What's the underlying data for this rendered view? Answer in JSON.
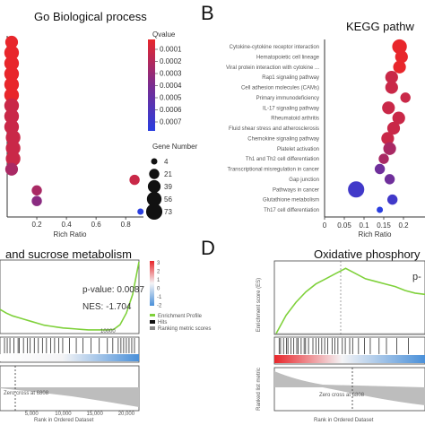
{
  "panel_letters": {
    "B": "B",
    "D": "D"
  },
  "chart_data": [
    {
      "type": "scatter",
      "panel": "A",
      "title": "Go Biological process",
      "xlabel": "Rich Ratio",
      "ylabel": "",
      "x_ticks": [
        "0.2",
        "0.4",
        "0.6",
        "0.8"
      ],
      "xlim": [
        0.0,
        0.92
      ],
      "categories": [
        "",
        "",
        "",
        "",
        "",
        "",
        "",
        "",
        "",
        "",
        "",
        "",
        "",
        "",
        "",
        "",
        ""
      ],
      "points": [
        {
          "x": 0.03,
          "y": 0,
          "size": 39,
          "qvalue": 0.0
        },
        {
          "x": 0.03,
          "y": 1,
          "size": 56,
          "qvalue": 0.0
        },
        {
          "x": 0.03,
          "y": 2,
          "size": 56,
          "qvalue": 0.0
        },
        {
          "x": 0.03,
          "y": 3,
          "size": 56,
          "qvalue": 0.0
        },
        {
          "x": 0.03,
          "y": 4,
          "size": 56,
          "qvalue": 0.0
        },
        {
          "x": 0.03,
          "y": 5,
          "size": 56,
          "qvalue": 0.0
        },
        {
          "x": 0.03,
          "y": 6,
          "size": 56,
          "qvalue": 0.0001
        },
        {
          "x": 0.03,
          "y": 7,
          "size": 56,
          "qvalue": 0.0001
        },
        {
          "x": 0.03,
          "y": 8,
          "size": 56,
          "qvalue": 0.0001
        },
        {
          "x": 0.04,
          "y": 9,
          "size": 56,
          "qvalue": 0.0001
        },
        {
          "x": 0.04,
          "y": 10,
          "size": 56,
          "qvalue": 0.0001
        },
        {
          "x": 0.04,
          "y": 11,
          "size": 56,
          "qvalue": 0.0001
        },
        {
          "x": 0.03,
          "y": 12,
          "size": 39,
          "qvalue": 0.0002
        },
        {
          "x": 0.86,
          "y": 13,
          "size": 21,
          "qvalue": 0.0001
        },
        {
          "x": 0.2,
          "y": 14,
          "size": 21,
          "qvalue": 0.0002
        },
        {
          "x": 0.2,
          "y": 15,
          "size": 21,
          "qvalue": 0.0003
        },
        {
          "x": 0.9,
          "y": 16,
          "size": 4,
          "qvalue": 0.0007
        }
      ],
      "colorbar": {
        "title": "Qvalue",
        "ticks": [
          "0.0001",
          "0.0002",
          "0.0003",
          "0.0004",
          "0.0005",
          "0.0006",
          "0.0007"
        ],
        "colors": [
          "#e8262b",
          "#7a2c8f",
          "#2a3ee0"
        ]
      },
      "size_legend": {
        "title": "Gene Number",
        "values": [
          "4",
          "21",
          "39",
          "56",
          "73"
        ]
      },
      "colors": {
        "high": "#e8262b",
        "mid": "#7a2c8f",
        "low": "#2a3ee0"
      }
    },
    {
      "type": "scatter",
      "panel": "B",
      "title": "KEGG pathw",
      "xlabel": "Rich Ratio",
      "ylabel": "",
      "x_ticks": [
        "0",
        "0.05",
        "0.1",
        "0.15",
        "0.2"
      ],
      "xlim": [
        0,
        0.2
      ],
      "categories": [
        "Cytokine-cytokine receptor interaction",
        "Hematopoietic cell lineage",
        "Viral protein interaction with cytokine ...",
        "Rap1 signaling pathway",
        "Cell adhesion molecules (CAMs)",
        "Primary immunodeficiency",
        "IL-17 signaling pathway",
        "Rheumatoid arthritis",
        "Fluid shear stress and atherosclerosis",
        "Chemokine signaling pathway",
        "Platelet activation",
        "Th1 and Th2 cell differentiation",
        "Transcriptional misregulation in cancer",
        "Gap junction",
        "Pathways in cancer",
        "Glutathione metabolism",
        "Th17 cell differentiation"
      ],
      "points": [
        {
          "x": 0.19,
          "y": 0,
          "size": 56,
          "qvalue": 0.0
        },
        {
          "x": 0.195,
          "y": 1,
          "size": 39,
          "qvalue": 0.0
        },
        {
          "x": 0.19,
          "y": 2,
          "size": 39,
          "qvalue": 0.0
        },
        {
          "x": 0.17,
          "y": 3,
          "size": 39,
          "qvalue": 0.0001
        },
        {
          "x": 0.17,
          "y": 4,
          "size": 39,
          "qvalue": 0.0001
        },
        {
          "x": 0.205,
          "y": 5,
          "size": 21,
          "qvalue": 0.0001
        },
        {
          "x": 0.162,
          "y": 6,
          "size": 39,
          "qvalue": 0.0001
        },
        {
          "x": 0.188,
          "y": 7,
          "size": 39,
          "qvalue": 0.0001
        },
        {
          "x": 0.175,
          "y": 8,
          "size": 39,
          "qvalue": 0.0001
        },
        {
          "x": 0.16,
          "y": 9,
          "size": 39,
          "qvalue": 0.0001
        },
        {
          "x": 0.165,
          "y": 10,
          "size": 39,
          "qvalue": 0.0002
        },
        {
          "x": 0.15,
          "y": 11,
          "size": 21,
          "qvalue": 0.0002
        },
        {
          "x": 0.14,
          "y": 12,
          "size": 21,
          "qvalue": 0.0004
        },
        {
          "x": 0.165,
          "y": 13,
          "size": 21,
          "qvalue": 0.0004
        },
        {
          "x": 0.08,
          "y": 14,
          "size": 73,
          "qvalue": 0.0006
        },
        {
          "x": 0.172,
          "y": 15,
          "size": 21,
          "qvalue": 0.0006
        },
        {
          "x": 0.14,
          "y": 16,
          "size": 4,
          "qvalue": 0.0007
        }
      ],
      "colors": {
        "high": "#e8262b",
        "mid": "#7a2c8f",
        "low": "#2a3ee0"
      }
    },
    {
      "type": "line",
      "panel": "C",
      "title": "and sucrose metabolism",
      "xlabel": "Rank in Ordered Dataset",
      "ylabel": "",
      "annotations": [
        "p-value: 0.0087",
        "NES: -1.704",
        "10000"
      ],
      "x_ticks": [
        "5,000",
        "10,000",
        "15,000",
        "20,000"
      ],
      "zero_label": "Zero cross at 6808",
      "legend": [
        "Enrichment Profile",
        "Hits",
        "Ranking metric scores"
      ],
      "heat_scale_ticks": [
        "3",
        "2",
        "1",
        "0",
        "-1",
        "-2"
      ],
      "x": [
        0,
        1000,
        2000,
        3000,
        4000,
        5000,
        6000,
        7000,
        8000,
        9000,
        10000,
        11000,
        12000,
        13000,
        14000,
        15000,
        16000,
        17000,
        18000,
        19000,
        20000,
        21000,
        22000
      ],
      "y": [
        -0.22,
        -0.3,
        -0.36,
        -0.4,
        -0.44,
        -0.48,
        -0.52,
        -0.56,
        -0.58,
        -0.6,
        -0.62,
        -0.63,
        -0.64,
        -0.65,
        -0.66,
        -0.66,
        -0.66,
        -0.66,
        -0.65,
        -0.55,
        -0.3,
        0.1,
        0.8
      ],
      "hits_rel": [
        0.02,
        0.04,
        0.06,
        0.09,
        0.12,
        0.13,
        0.16,
        0.19,
        0.21,
        0.24,
        0.27,
        0.3,
        0.33,
        0.36,
        0.39,
        0.42,
        0.45,
        0.5,
        0.55,
        0.6,
        0.66,
        0.72,
        0.78,
        0.82,
        0.86,
        0.88,
        0.9,
        0.92,
        0.94,
        0.96,
        0.98
      ],
      "colors": {
        "line": "#7fd13b",
        "pos": "#e8262b",
        "neg": "#4a90d9"
      }
    },
    {
      "type": "line",
      "panel": "D",
      "title": "Oxidative phosphory",
      "xlabel": "Rank in Ordered Dataset",
      "ylabel": "Enrichment score (ES)",
      "ylabel_bottom": "Ranked list metric",
      "annotations": [
        "p-"
      ],
      "zero_label": "Zero cross at 6808",
      "x": [
        0,
        1000,
        2000,
        3000,
        4000,
        5000,
        6000,
        7000,
        8000,
        9000,
        10000,
        11000,
        12000,
        13000,
        14000,
        15000
      ],
      "y": [
        0.0,
        0.14,
        0.24,
        0.32,
        0.38,
        0.42,
        0.46,
        0.5,
        0.46,
        0.42,
        0.4,
        0.38,
        0.36,
        0.33,
        0.31,
        0.3
      ],
      "hits_rel": [
        0.02,
        0.03,
        0.05,
        0.07,
        0.08,
        0.1,
        0.12,
        0.14,
        0.15,
        0.17,
        0.19,
        0.2,
        0.22,
        0.25,
        0.27,
        0.29,
        0.31,
        0.33,
        0.35,
        0.38,
        0.4,
        0.42,
        0.45,
        0.47,
        0.5,
        0.52,
        0.56,
        0.6,
        0.64,
        0.7,
        0.75,
        0.82,
        0.9
      ],
      "colors": {
        "line": "#7fd13b",
        "pos": "#e8262b",
        "neg": "#4a90d9"
      }
    }
  ]
}
